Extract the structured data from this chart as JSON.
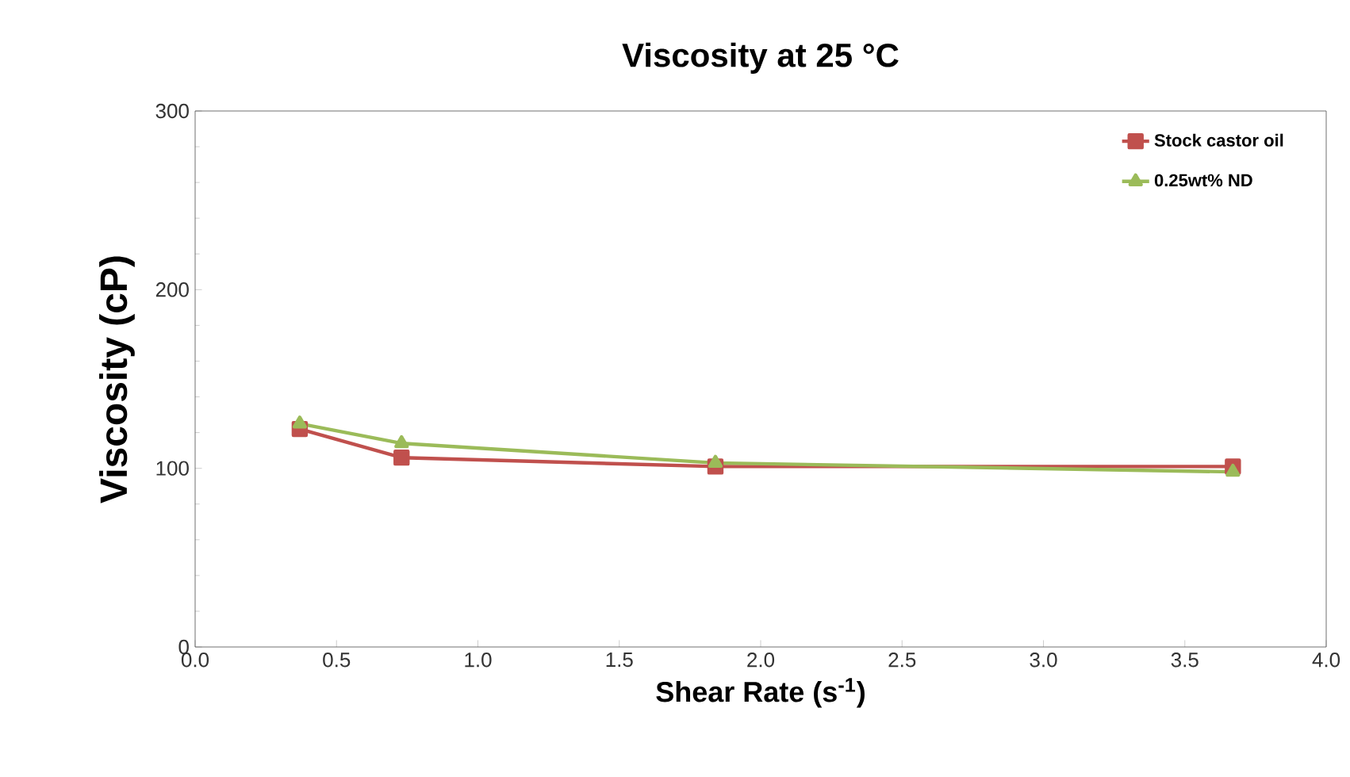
{
  "chart_data": {
    "type": "line",
    "title": "Viscosity at 25 °C",
    "xlabel": "Shear Rate (s$^{-1}$)",
    "ylabel": "Viscosity (cP)",
    "xlim": [
      0,
      4
    ],
    "xticks": [
      {
        "value": 0,
        "label": "0.0"
      },
      {
        "value": 0.5,
        "label": "0.5"
      },
      {
        "value": 1,
        "label": "1.0"
      },
      {
        "value": 1.5,
        "label": "1.5"
      },
      {
        "value": 2,
        "label": "2.0"
      },
      {
        "value": 2.5,
        "label": "2.5"
      },
      {
        "value": 3,
        "label": "3.0"
      },
      {
        "value": 3.5,
        "label": "3.5"
      },
      {
        "value": 4,
        "label": "4.0"
      }
    ],
    "ylim": [
      0,
      300
    ],
    "yticks": [
      0,
      100,
      200,
      300
    ],
    "x": [
      0.37,
      0.73,
      1.84,
      3.67
    ],
    "series": [
      {
        "name": "Stock castor oil",
        "color": "#c0504d",
        "marker": "square",
        "values": [
          122,
          106,
          101,
          101
        ]
      },
      {
        "name": "0.25wt% ND",
        "color": "#9bbb59",
        "marker": "triangle",
        "values": [
          125,
          114,
          103,
          98
        ]
      }
    ],
    "legend": "top right",
    "grid": false
  }
}
